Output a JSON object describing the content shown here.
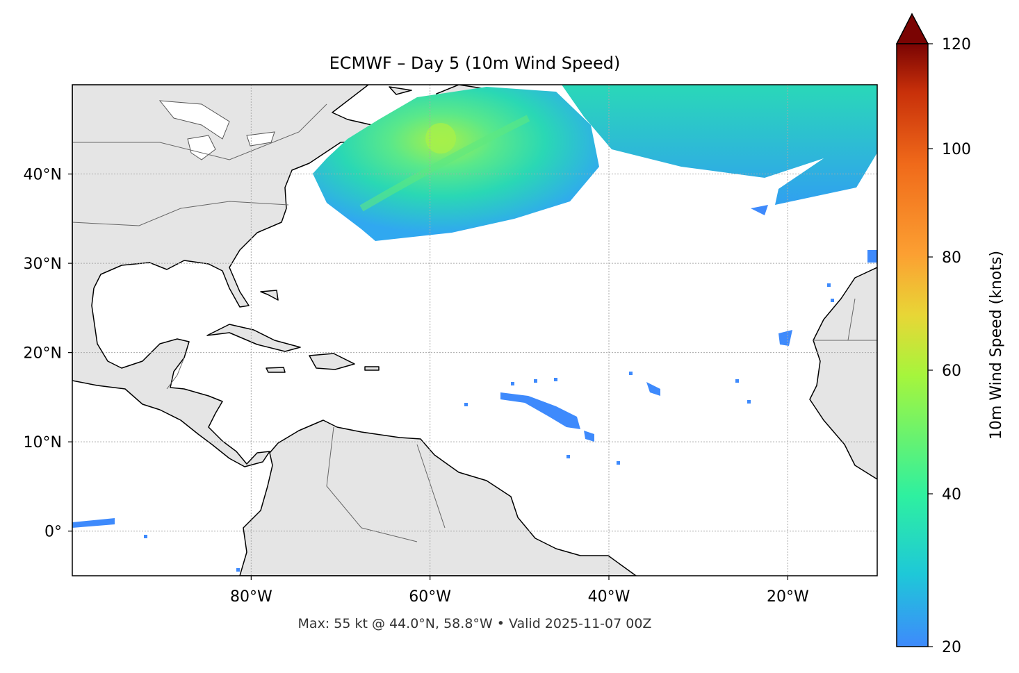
{
  "title": "ECMWF – Day 5 (10m Wind Speed)",
  "annotation": "Max: 55 kt @ 44.0°N, 58.8°W • Valid 2025-11-07 00Z",
  "map": {
    "projection": "PlateCarree",
    "extent": {
      "lon": [
        -100,
        -10
      ],
      "lat": [
        -5,
        50
      ]
    },
    "gridlines": true,
    "x_ticks": [
      {
        "lon": -80,
        "label": "80°W"
      },
      {
        "lon": -60,
        "label": "60°W"
      },
      {
        "lon": -40,
        "label": "40°W"
      },
      {
        "lon": -20,
        "label": "20°W"
      }
    ],
    "y_ticks": [
      {
        "lat": 40,
        "label": "40°N"
      },
      {
        "lat": 30,
        "label": "30°N"
      },
      {
        "lat": 20,
        "label": "20°N"
      },
      {
        "lat": 10,
        "label": "10°N"
      },
      {
        "lat": 0,
        "label": "0°"
      }
    ],
    "land_color": "#e5e5e5",
    "ocean_color": "#ffffff",
    "max_wind": {
      "value_kt": 55,
      "lat": 44.0,
      "lon": -58.8
    }
  },
  "colorbar": {
    "label": "10m Wind Speed (knots)",
    "range": [
      20,
      120
    ],
    "extend": "max",
    "ticks": [
      {
        "value": 120,
        "label": "120"
      },
      {
        "value": 100,
        "label": "100"
      },
      {
        "value": 80,
        "label": "80"
      },
      {
        "value": 60,
        "label": "60"
      },
      {
        "value": 40,
        "label": "40"
      },
      {
        "value": 20,
        "label": "20"
      }
    ],
    "colors": [
      "#3e8afc",
      "#1ec8d8",
      "#2ef0a0",
      "#a6f53c",
      "#e8d636",
      "#fca032",
      "#f06a1a",
      "#c8300a",
      "#7a0403"
    ]
  }
}
